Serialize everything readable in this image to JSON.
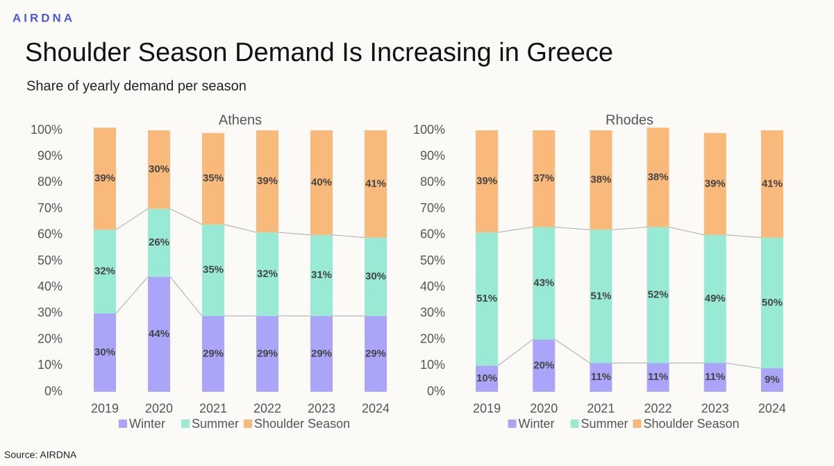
{
  "logo": "AIRDNA",
  "title": "Shoulder Season Demand Is Increasing in Greece",
  "subtitle": "Share of yearly demand per season",
  "source": "Source: AIRDNA",
  "chart_data": [
    {
      "type": "bar",
      "stacked": true,
      "title": "Athens",
      "categories": [
        "2019",
        "2020",
        "2021",
        "2022",
        "2023",
        "2024"
      ],
      "series": [
        {
          "name": "Winter",
          "color": "#aaa5f8",
          "values": [
            30,
            44,
            29,
            29,
            29,
            29
          ],
          "value_labels": [
            "30%",
            "44%",
            "29%",
            "29%",
            "29%",
            "29%"
          ]
        },
        {
          "name": "Summer",
          "color": "#98ead5",
          "values": [
            32,
            26,
            35,
            32,
            31,
            30
          ],
          "value_labels": [
            "32%",
            "26%",
            "35%",
            "32%",
            "31%",
            "30%"
          ]
        },
        {
          "name": "Shoulder Season",
          "color": "#f9b97a",
          "values": [
            39,
            30,
            35,
            39,
            40,
            41
          ],
          "value_labels": [
            "39%",
            "30%",
            "35%",
            "39%",
            "40%",
            "41%"
          ]
        }
      ],
      "ylim": [
        0,
        100
      ],
      "yticks": [
        {
          "value": 0,
          "label": "0%"
        },
        {
          "value": 10,
          "label": "10%"
        },
        {
          "value": 20,
          "label": "20%"
        },
        {
          "value": 30,
          "label": "30%"
        },
        {
          "value": 40,
          "label": "40%"
        },
        {
          "value": 50,
          "label": "50%"
        },
        {
          "value": 60,
          "label": "60%"
        },
        {
          "value": 70,
          "label": "70%"
        },
        {
          "value": 80,
          "label": "80%"
        },
        {
          "value": 90,
          "label": "90%"
        },
        {
          "value": 100,
          "label": "100%"
        }
      ],
      "legend": "bottom",
      "connectors": true
    },
    {
      "type": "bar",
      "stacked": true,
      "title": "Rhodes",
      "categories": [
        "2019",
        "2020",
        "2021",
        "2022",
        "2023",
        "2024"
      ],
      "series": [
        {
          "name": "Winter",
          "color": "#aaa5f8",
          "values": [
            10,
            20,
            11,
            11,
            11,
            9
          ],
          "value_labels": [
            "10%",
            "20%",
            "11%",
            "11%",
            "11%",
            "9%"
          ]
        },
        {
          "name": "Summer",
          "color": "#98ead5",
          "values": [
            51,
            43,
            51,
            52,
            49,
            50
          ],
          "value_labels": [
            "51%",
            "43%",
            "51%",
            "52%",
            "49%",
            "50%"
          ]
        },
        {
          "name": "Shoulder Season",
          "color": "#f9b97a",
          "values": [
            39,
            37,
            38,
            38,
            39,
            41
          ],
          "value_labels": [
            "39%",
            "37%",
            "38%",
            "38%",
            "39%",
            "41%"
          ]
        }
      ],
      "ylim": [
        0,
        100
      ],
      "yticks": [
        {
          "value": 0,
          "label": "0%"
        },
        {
          "value": 10,
          "label": "10%"
        },
        {
          "value": 20,
          "label": "20%"
        },
        {
          "value": 30,
          "label": "30%"
        },
        {
          "value": 40,
          "label": "40%"
        },
        {
          "value": 50,
          "label": "50%"
        },
        {
          "value": 60,
          "label": "60%"
        },
        {
          "value": 70,
          "label": "70%"
        },
        {
          "value": 80,
          "label": "80%"
        },
        {
          "value": 90,
          "label": "90%"
        },
        {
          "value": 100,
          "label": "100%"
        }
      ],
      "legend": "bottom",
      "connectors": true
    }
  ]
}
